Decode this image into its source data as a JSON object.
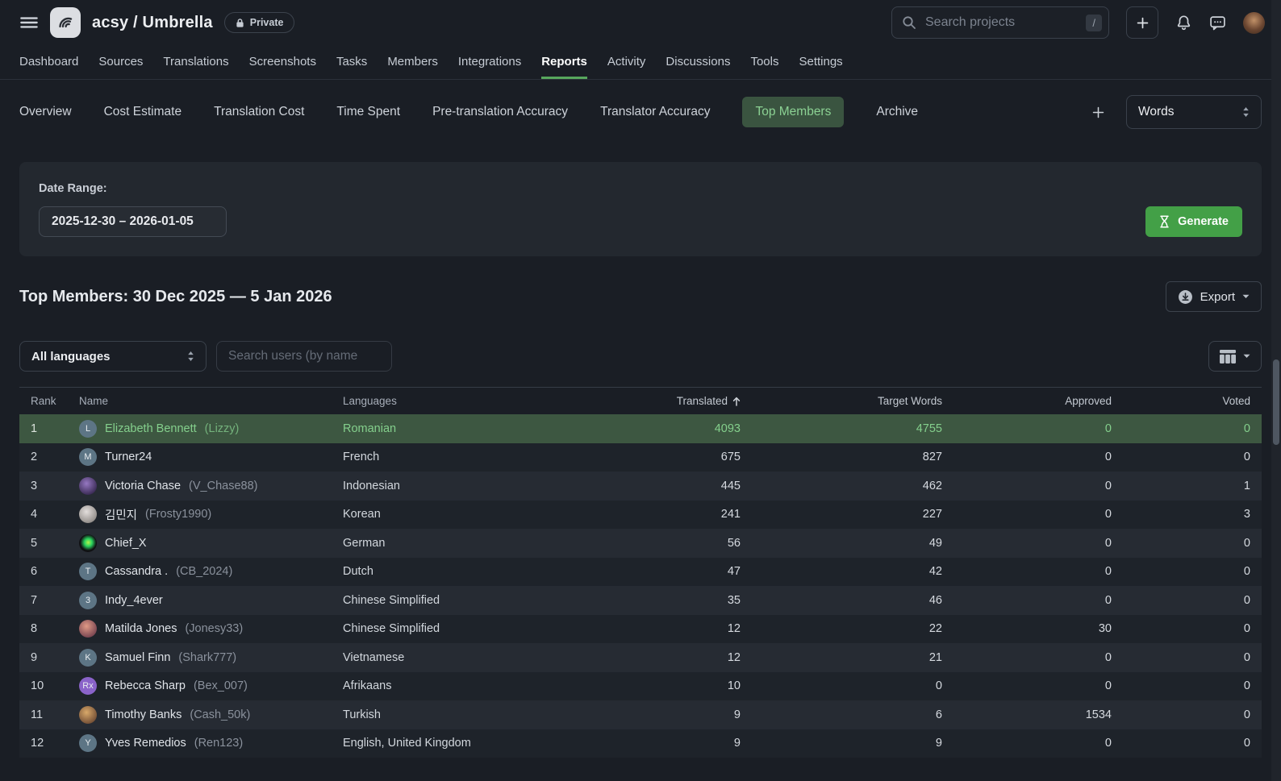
{
  "header": {
    "project_title": "acsy / Umbrella",
    "private_badge": "Private",
    "search_placeholder": "Search projects",
    "search_shortcut": "/"
  },
  "main_nav": {
    "items": [
      "Dashboard",
      "Sources",
      "Translations",
      "Screenshots",
      "Tasks",
      "Members",
      "Integrations",
      "Reports",
      "Activity",
      "Discussions",
      "Tools",
      "Settings"
    ],
    "active": "Reports"
  },
  "report_tabs": {
    "items": [
      "Overview",
      "Cost Estimate",
      "Translation Cost",
      "Time Spent",
      "Pre-translation Accuracy",
      "Translator Accuracy",
      "Top Members",
      "Archive"
    ],
    "active": "Top Members",
    "unit_selector_value": "Words"
  },
  "report_form": {
    "date_range_label": "Date Range:",
    "date_range_value": "2025-12-30 – 2026-01-05",
    "generate_label": "Generate"
  },
  "results": {
    "title": "Top Members: 30 Dec 2025 — 5 Jan 2026",
    "export_label": "Export"
  },
  "filters": {
    "language_filter_value": "All languages",
    "user_search_placeholder": "Search users (by name"
  },
  "table": {
    "columns": [
      "Rank",
      "Name",
      "Languages",
      "Translated",
      "Target Words",
      "Approved",
      "Voted"
    ],
    "sort_column": "Translated",
    "sort_direction": "asc",
    "rows": [
      {
        "rank": 1,
        "name": "Elizabeth Bennett",
        "username": "(Lizzy)",
        "avatar": {
          "kind": "letter",
          "text": "L",
          "bg": "#5d7585"
        },
        "languages": "Romanian",
        "translated": 4093,
        "target_words": 4755,
        "approved": 0,
        "voted": 0,
        "highlighted": true
      },
      {
        "rank": 2,
        "name": "Turner24",
        "username": "",
        "avatar": {
          "kind": "letter",
          "text": "M",
          "bg": "#5d7585"
        },
        "languages": "French",
        "translated": 675,
        "target_words": 827,
        "approved": 0,
        "voted": 0,
        "highlighted": false
      },
      {
        "rank": 3,
        "name": "Victoria Chase",
        "username": "(V_Chase88)",
        "avatar": {
          "kind": "photo",
          "colors": [
            "#9678c2",
            "#35264e"
          ]
        },
        "languages": "Indonesian",
        "translated": 445,
        "target_words": 462,
        "approved": 0,
        "voted": 1,
        "highlighted": false
      },
      {
        "rank": 4,
        "name": "김민지",
        "username": "(Frosty1990)",
        "avatar": {
          "kind": "photo",
          "colors": [
            "#e3dedc",
            "#8d8884"
          ]
        },
        "languages": "Korean",
        "translated": 241,
        "target_words": 227,
        "approved": 0,
        "voted": 3,
        "highlighted": false
      },
      {
        "rank": 5,
        "name": "Chief_X",
        "username": "",
        "avatar": {
          "kind": "photo",
          "colors": [
            "#b5f04d",
            "#2ad45e",
            "#101113"
          ]
        },
        "languages": "German",
        "translated": 56,
        "target_words": 49,
        "approved": 0,
        "voted": 0,
        "highlighted": false
      },
      {
        "rank": 6,
        "name": "Cassandra .",
        "username": "(CB_2024)",
        "avatar": {
          "kind": "letter",
          "text": "T",
          "bg": "#5d7585"
        },
        "languages": "Dutch",
        "translated": 47,
        "target_words": 42,
        "approved": 0,
        "voted": 0,
        "highlighted": false
      },
      {
        "rank": 7,
        "name": "Indy_4ever",
        "username": "",
        "avatar": {
          "kind": "letter",
          "text": "3",
          "bg": "#5d7585"
        },
        "languages": "Chinese Simplified",
        "translated": 35,
        "target_words": 46,
        "approved": 0,
        "voted": 0,
        "highlighted": false
      },
      {
        "rank": 8,
        "name": "Matilda Jones",
        "username": "(Jonesy33)",
        "avatar": {
          "kind": "photo",
          "colors": [
            "#e09a86",
            "#73404e"
          ]
        },
        "languages": "Chinese Simplified",
        "translated": 12,
        "target_words": 22,
        "approved": 30,
        "voted": 0,
        "highlighted": false
      },
      {
        "rank": 9,
        "name": "Samuel Finn",
        "username": "(Shark777)",
        "avatar": {
          "kind": "letter",
          "text": "K",
          "bg": "#5d7585"
        },
        "languages": "Vietnamese",
        "translated": 12,
        "target_words": 21,
        "approved": 0,
        "voted": 0,
        "highlighted": false
      },
      {
        "rank": 10,
        "name": "Rebecca Sharp",
        "username": "(Bex_007)",
        "avatar": {
          "kind": "letter",
          "text": "Rx",
          "bg": "#8a63c9"
        },
        "languages": "Afrikaans",
        "translated": 10,
        "target_words": 0,
        "approved": 0,
        "voted": 0,
        "highlighted": false
      },
      {
        "rank": 11,
        "name": "Timothy Banks",
        "username": "(Cash_50k)",
        "avatar": {
          "kind": "photo",
          "colors": [
            "#d9a96a",
            "#6e4a33"
          ]
        },
        "languages": "Turkish",
        "translated": 9,
        "target_words": 6,
        "approved": 1534,
        "voted": 0,
        "highlighted": false
      },
      {
        "rank": 12,
        "name": "Yves Remedios",
        "username": "(Ren123)",
        "avatar": {
          "kind": "letter",
          "text": "Y",
          "bg": "#5d7585"
        },
        "languages": "English, United Kingdom",
        "translated": 9,
        "target_words": 9,
        "approved": 0,
        "voted": 0,
        "highlighted": false
      }
    ]
  },
  "colors": {
    "accent_green": "#43a047",
    "active_tab_bg": "#3a5440",
    "active_tab_text": "#8bd193",
    "highlight_row_bg": "#3d5741",
    "highlight_row_text": "#84cf8c",
    "nav_active_underline": "#57a75d"
  }
}
